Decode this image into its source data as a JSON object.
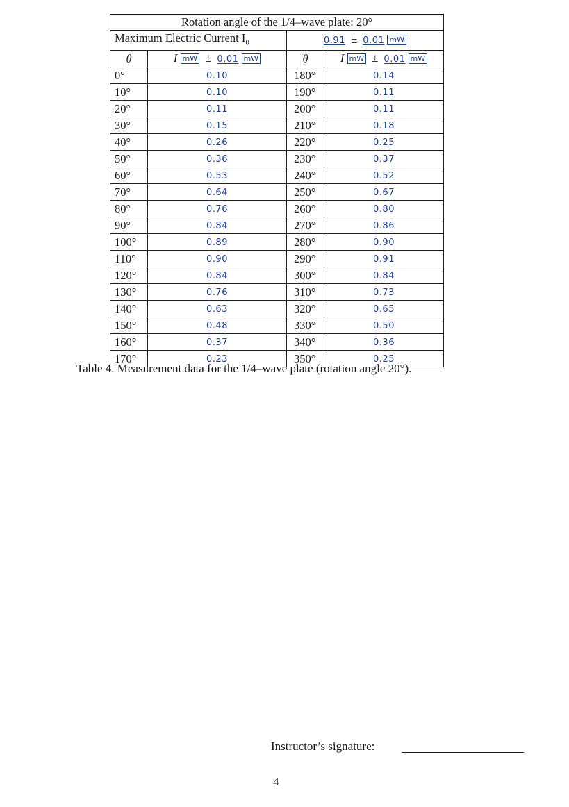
{
  "table": {
    "title": "Rotation angle of the 1/4–wave plate: 20°",
    "max_current_label": "Maximum Electric Current I",
    "max_current_subscript": "0",
    "max_current_value": "0.91",
    "max_current_pm": "±",
    "max_current_uncertainty": "0.01",
    "max_current_unit": "mW",
    "header": {
      "theta": "θ",
      "intensity_symbol": "I",
      "unit_left": "mW",
      "pm": "±",
      "uncertainty_left": "0.01",
      "unit_left_2": "mW",
      "unit_right": "mW",
      "uncertainty_right": "0.01",
      "unit_right_2": "mW"
    },
    "rows": [
      {
        "angle_left": "0°",
        "value_left": "0.10",
        "angle_right": "180°",
        "value_right": "0.14"
      },
      {
        "angle_left": "10°",
        "value_left": "0.10",
        "angle_right": "190°",
        "value_right": "0.11"
      },
      {
        "angle_left": "20°",
        "value_left": "0.11",
        "angle_right": "200°",
        "value_right": "0.11"
      },
      {
        "angle_left": "30°",
        "value_left": "0.15",
        "angle_right": "210°",
        "value_right": "0.18"
      },
      {
        "angle_left": "40°",
        "value_left": "0.26",
        "angle_right": "220°",
        "value_right": "0.25"
      },
      {
        "angle_left": "50°",
        "value_left": "0.36",
        "angle_right": "230°",
        "value_right": "0.37"
      },
      {
        "angle_left": "60°",
        "value_left": "0.53",
        "angle_right": "240°",
        "value_right": "0.52"
      },
      {
        "angle_left": "70°",
        "value_left": "0.64",
        "angle_right": "250°",
        "value_right": "0.67"
      },
      {
        "angle_left": "80°",
        "value_left": "0.76",
        "angle_right": "260°",
        "value_right": "0.80"
      },
      {
        "angle_left": "90°",
        "value_left": "0.84",
        "angle_right": "270°",
        "value_right": "0.86"
      },
      {
        "angle_left": "100°",
        "value_left": "0.89",
        "angle_right": "280°",
        "value_right": "0.90"
      },
      {
        "angle_left": "110°",
        "value_left": "0.90",
        "angle_right": "290°",
        "value_right": "0.91"
      },
      {
        "angle_left": "120°",
        "value_left": "0.84",
        "angle_right": "300°",
        "value_right": "0.84"
      },
      {
        "angle_left": "130°",
        "value_left": "0.76",
        "angle_right": "310°",
        "value_right": "0.73"
      },
      {
        "angle_left": "140°",
        "value_left": "0.63",
        "angle_right": "320°",
        "value_right": "0.65"
      },
      {
        "angle_left": "150°",
        "value_left": "0.48",
        "angle_right": "330°",
        "value_right": "0.50"
      },
      {
        "angle_left": "160°",
        "value_left": "0.37",
        "angle_right": "340°",
        "value_right": "0.36"
      },
      {
        "angle_left": "170°",
        "value_left": "0.23",
        "angle_right": "350°",
        "value_right": "0.25"
      }
    ]
  },
  "caption": "Table 4. Measurement data for the 1/4–wave plate (rotation angle 20°).",
  "signature_label": "Instructor’s signature:",
  "page_number": "4",
  "colors": {
    "handwriting": "#1f3f9a",
    "text": "#1a1a1a"
  }
}
